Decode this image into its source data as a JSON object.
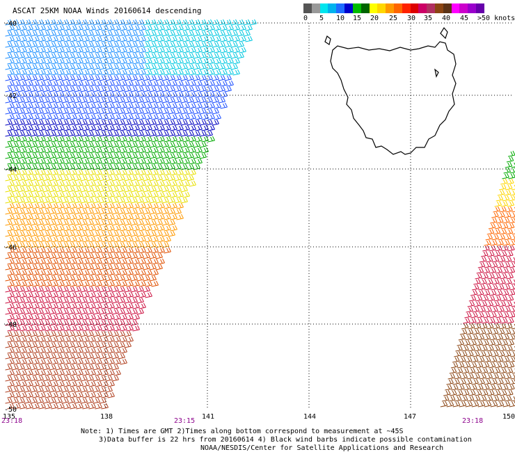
{
  "title": "ASCAT 25KM NOAA Winds 20160614 descending",
  "colorbar": {
    "colors": [
      "#555555",
      "#999999",
      "#00e5ee",
      "#00b2ee",
      "#1e6cff",
      "#0000cc",
      "#00bb00",
      "#006400",
      "#ffff00",
      "#ffd700",
      "#ff9900",
      "#ff6600",
      "#ff2200",
      "#dd0000",
      "#cc0066",
      "#b03060",
      "#8b4513",
      "#5c3317",
      "#ff00ff",
      "#cc00cc",
      "#9900cc",
      "#6600aa"
    ],
    "labels": [
      "0",
      "5",
      "10",
      "15",
      "20",
      "25",
      "30",
      "35",
      "40",
      "45",
      ">50 knots"
    ]
  },
  "axes": {
    "lat_labels": [
      "-40",
      "-42",
      "-44",
      "-46",
      "-48",
      "-50"
    ],
    "lon_labels": [
      "135",
      "138",
      "141",
      "144",
      "147",
      "150"
    ],
    "time_labels": [
      "23:18",
      "23:15",
      "23:18"
    ]
  },
  "notes": {
    "line1": "Note: 1) Times are GMT 2)Times along bottom correspond to measurement at ~45S",
    "line2": "3)Data buffer is 22 hrs from 20160614 4) Black wind barbs indicate possible contamination",
    "line3": "NOAA/NESDIS/Center for Satellite Applications and Research"
  },
  "region": "Tasmania"
}
